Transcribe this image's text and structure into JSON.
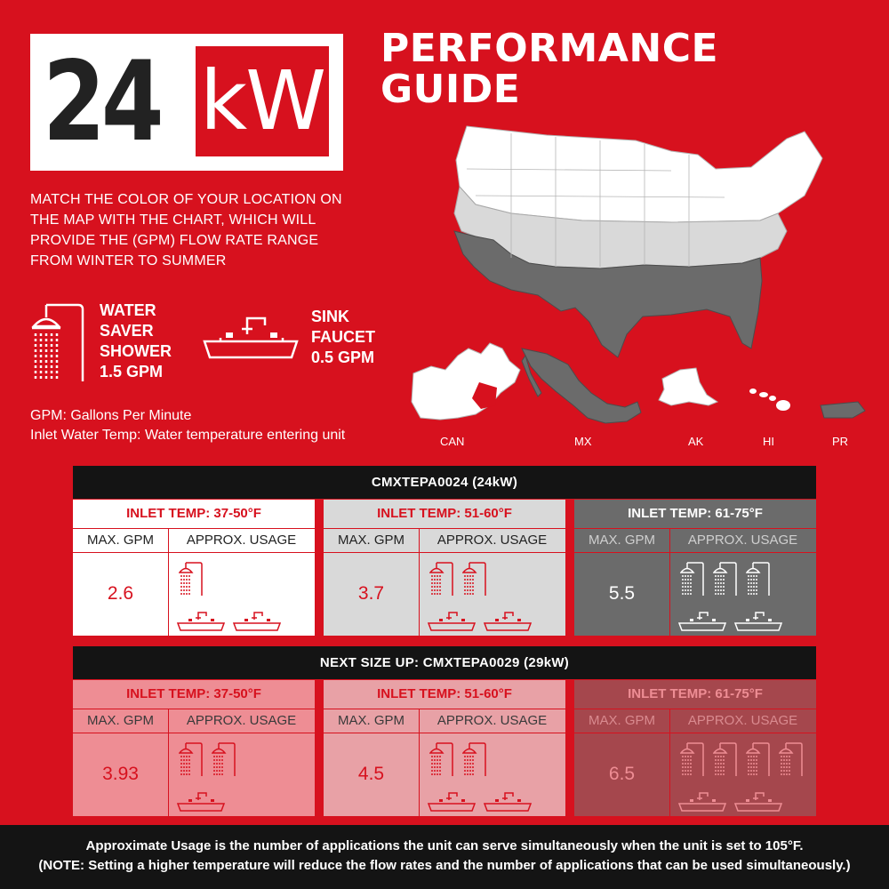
{
  "header": {
    "badge_number": "24",
    "badge_unit": "kW",
    "title_line1": "PERFORMANCE",
    "title_line2": "GUIDE"
  },
  "intro": {
    "line1": "MATCH THE COLOR OF YOUR LOCATION ON",
    "line2": "THE MAP WITH THE CHART, WHICH WILL",
    "line3": "PROVIDE THE  (GPM) FLOW RATE RANGE",
    "line4": "FROM WINTER TO SUMMER"
  },
  "applications": {
    "shower": {
      "icon": "shower-icon",
      "line1": "WATER",
      "line2": "SAVER",
      "line3": "SHOWER",
      "line4": "1.5 GPM"
    },
    "sink": {
      "icon": "sink-faucet-icon",
      "line1": "SINK",
      "line2": "FAUCET",
      "line3": "0.5 GPM"
    }
  },
  "legend": {
    "gpm": "GPM: Gallons Per Minute",
    "inlet": "Inlet Water Temp: Water temperature entering unit"
  },
  "map_labels": {
    "can": "CAN",
    "mx": "MX",
    "ak": "AK",
    "hi": "HI",
    "pr": "PR"
  },
  "colors": {
    "red": "#d7111e",
    "zone_cold": "#ffffff",
    "zone_mid": "#d9d9d9",
    "zone_warm": "#6b6b6b",
    "dark": "#141414"
  },
  "tables": [
    {
      "title": "CMXTEPA0024 (24kW)",
      "columns": [
        {
          "inlet": "INLET TEMP: 37-50°F",
          "gpm_label": "MAX. GPM",
          "usage_label": "APPROX. USAGE",
          "gpm": "2.6",
          "showers": 1,
          "sinks": 2
        },
        {
          "inlet": "INLET TEMP: 51-60°F",
          "gpm_label": "MAX. GPM",
          "usage_label": "APPROX. USAGE",
          "gpm": "3.7",
          "showers": 2,
          "sinks": 2
        },
        {
          "inlet": "INLET TEMP: 61-75°F",
          "gpm_label": "MAX. GPM",
          "usage_label": "APPROX. USAGE",
          "gpm": "5.5",
          "showers": 3,
          "sinks": 2
        }
      ]
    },
    {
      "title": "NEXT SIZE UP: CMXTEPA0029 (29kW)",
      "columns": [
        {
          "inlet": "INLET TEMP: 37-50°F",
          "gpm_label": "MAX. GPM",
          "usage_label": "APPROX. USAGE",
          "gpm": "3.93",
          "showers": 2,
          "sinks": 1
        },
        {
          "inlet": "INLET TEMP: 51-60°F",
          "gpm_label": "MAX. GPM",
          "usage_label": "APPROX. USAGE",
          "gpm": "4.5",
          "showers": 2,
          "sinks": 2
        },
        {
          "inlet": "INLET TEMP: 61-75°F",
          "gpm_label": "MAX. GPM",
          "usage_label": "APPROX. USAGE",
          "gpm": "6.5",
          "showers": 4,
          "sinks": 2
        }
      ]
    }
  ],
  "footer": {
    "line1": "Approximate Usage is the number of applications the unit can serve simultaneously when the unit is set to 105°F.",
    "line2": "(NOTE:  Setting a higher temperature will reduce the flow rates and the number of applications that can be used simultaneously.)"
  }
}
